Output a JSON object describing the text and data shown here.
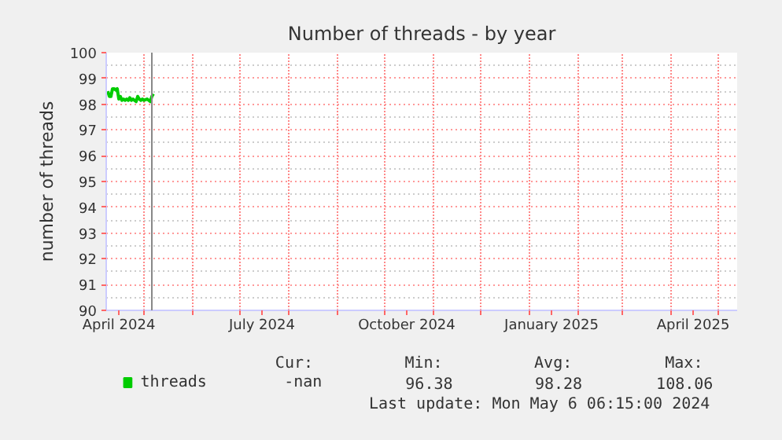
{
  "chart_data": {
    "type": "line",
    "title": "Number of threads - by year",
    "ylabel": "number of threads",
    "x": [
      "2024-04-08",
      "2024-04-09",
      "2024-04-10",
      "2024-04-11",
      "2024-04-12",
      "2024-04-13",
      "2024-04-14",
      "2024-04-15",
      "2024-04-16",
      "2024-04-17",
      "2024-04-18",
      "2024-04-19",
      "2024-04-20",
      "2024-04-21",
      "2024-04-22",
      "2024-04-23",
      "2024-04-24",
      "2024-04-25",
      "2024-04-26",
      "2024-04-27",
      "2024-04-28",
      "2024-04-29",
      "2024-04-30",
      "2024-05-01",
      "2024-05-03",
      "2024-05-05",
      "2024-05-06",
      "2024-05-07"
    ],
    "series": [
      {
        "name": "threads",
        "color": "#00cc00",
        "values": [
          98.5,
          98.3,
          98.3,
          98.6,
          98.6,
          98.55,
          98.6,
          98.2,
          98.3,
          98.15,
          98.2,
          98.15,
          98.2,
          98.15,
          98.25,
          98.15,
          98.2,
          98.15,
          98.1,
          98.3,
          98.2,
          98.15,
          98.2,
          98.15,
          98.2,
          98.1,
          98.3,
          98.4
        ]
      }
    ],
    "xlim": [
      "2024-04-07",
      "2025-05-13"
    ],
    "xticks": [
      {
        "value": "2024-04-15",
        "label": "April 2024"
      },
      {
        "value": "2024-07-15",
        "label": "July 2024"
      },
      {
        "value": "2024-10-15",
        "label": "October 2024"
      },
      {
        "value": "2025-01-15",
        "label": "January 2025"
      },
      {
        "value": "2025-04-15",
        "label": "April 2025"
      },
      {
        "value": "2024-05-01",
        "label": null
      },
      {
        "value": "2024-06-01",
        "label": null
      },
      {
        "value": "2024-07-01",
        "label": null
      },
      {
        "value": "2024-08-01",
        "label": null
      },
      {
        "value": "2024-09-01",
        "label": null
      },
      {
        "value": "2024-10-01",
        "label": null
      },
      {
        "value": "2024-11-01",
        "label": null
      },
      {
        "value": "2024-12-01",
        "label": null
      },
      {
        "value": "2025-01-01",
        "label": null
      },
      {
        "value": "2025-02-01",
        "label": null
      },
      {
        "value": "2025-03-01",
        "label": null
      },
      {
        "value": "2025-04-01",
        "label": null
      },
      {
        "value": "2025-05-01",
        "label": null
      }
    ],
    "ylim": [
      90,
      100
    ],
    "yticks": [
      90,
      91,
      92,
      93,
      94,
      95,
      96,
      97,
      98,
      99,
      100
    ],
    "ref_lines": [
      {
        "axis": "x",
        "value": "2024-05-06",
        "label": null,
        "color": "#888888"
      }
    ],
    "annotations": [
      "Cur:",
      "Min:",
      "Avg:",
      "Max:",
      "-nan",
      "96.38",
      "98.28",
      "108.06",
      "Last update: Mon May  6 06:15:00 2024"
    ],
    "grid": true,
    "legend": "bottom",
    "marker": "none",
    "line_style": "solid"
  }
}
